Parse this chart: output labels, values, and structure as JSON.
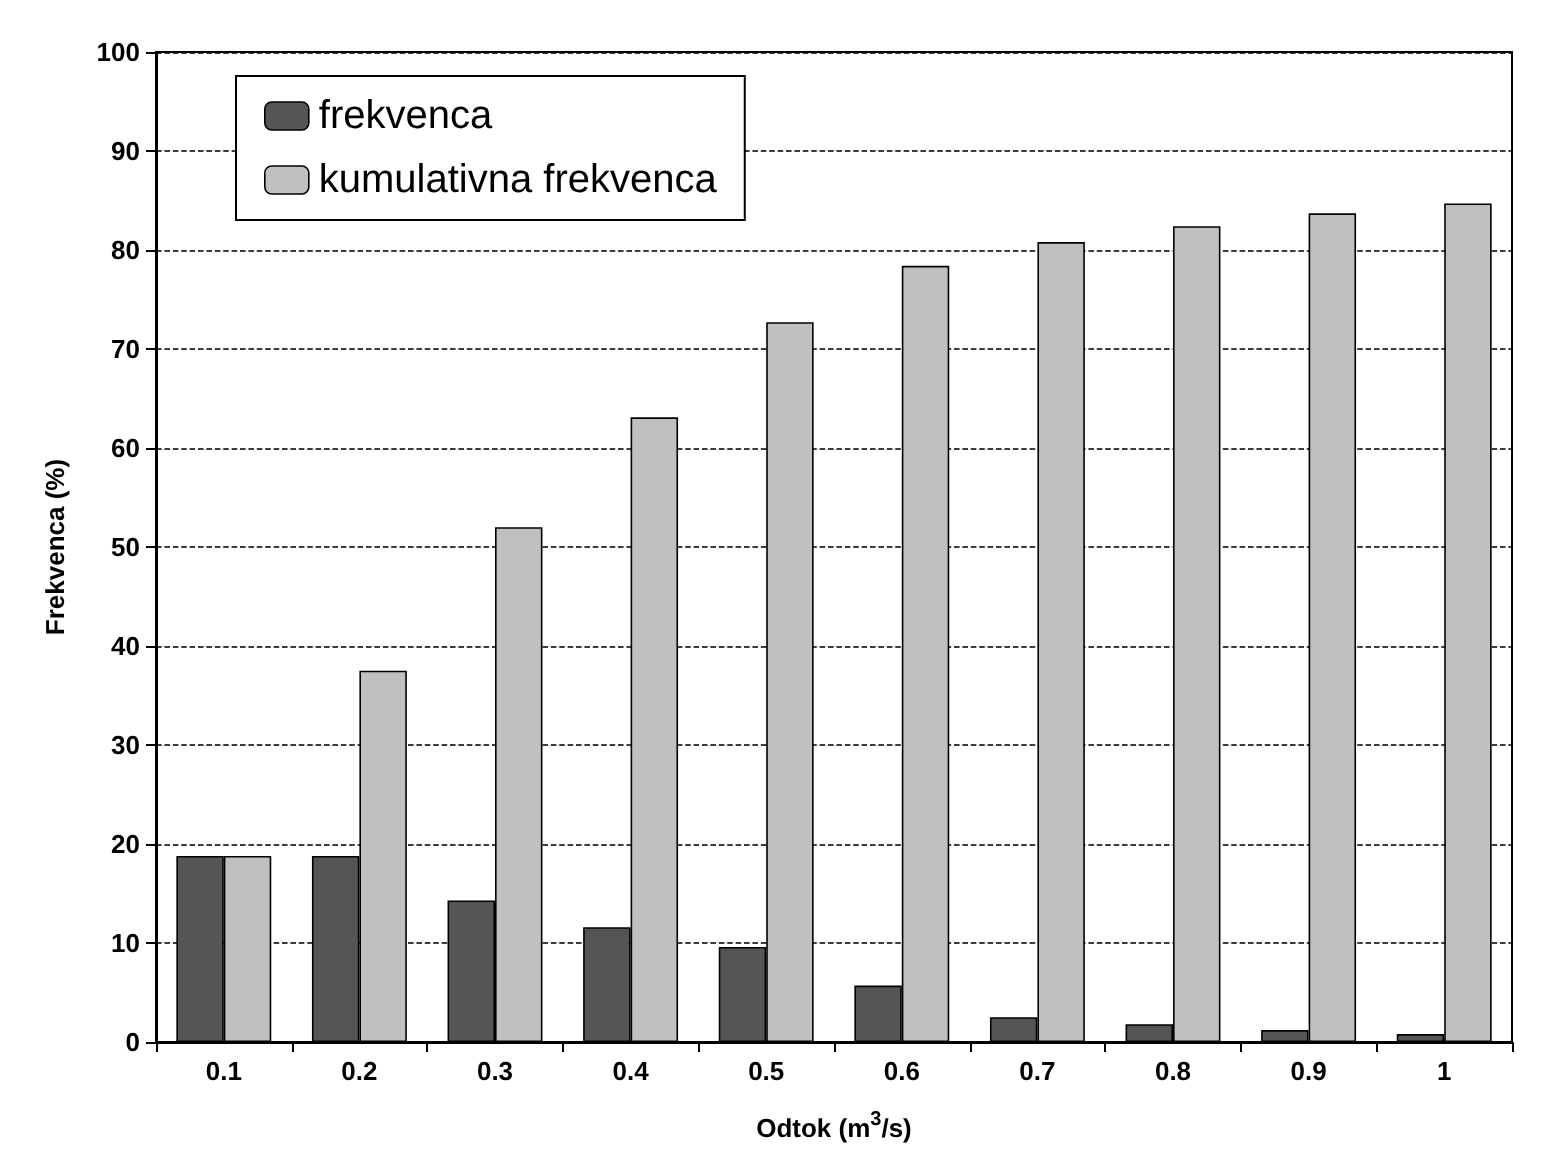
{
  "chart_data": {
    "type": "bar",
    "xlabel": "Odtok (m$^{3}$/s)",
    "ylabel": "Frekvenca (%)",
    "categories": [
      "0.1",
      "0.2",
      "0.3",
      "0.4",
      "0.5",
      "0.6",
      "0.7",
      "0.8",
      "0.9",
      "1"
    ],
    "series": [
      {
        "name": "frekvenca",
        "color": "#555555",
        "values": [
          18.8,
          18.8,
          14.3,
          11.6,
          9.6,
          5.7,
          2.5,
          1.8,
          1.2,
          0.8
        ]
      },
      {
        "name": "kumulativna frekvenca",
        "color": "#c0c0c0",
        "values": [
          18.8,
          37.5,
          52,
          63.1,
          72.7,
          78.4,
          80.8,
          82.4,
          83.7,
          84.7
        ]
      }
    ],
    "ylim": [
      0,
      100
    ],
    "yticks": [
      0,
      10,
      20,
      30,
      40,
      50,
      60,
      70,
      80,
      90,
      100
    ],
    "grid": "y",
    "legend": "top left"
  }
}
